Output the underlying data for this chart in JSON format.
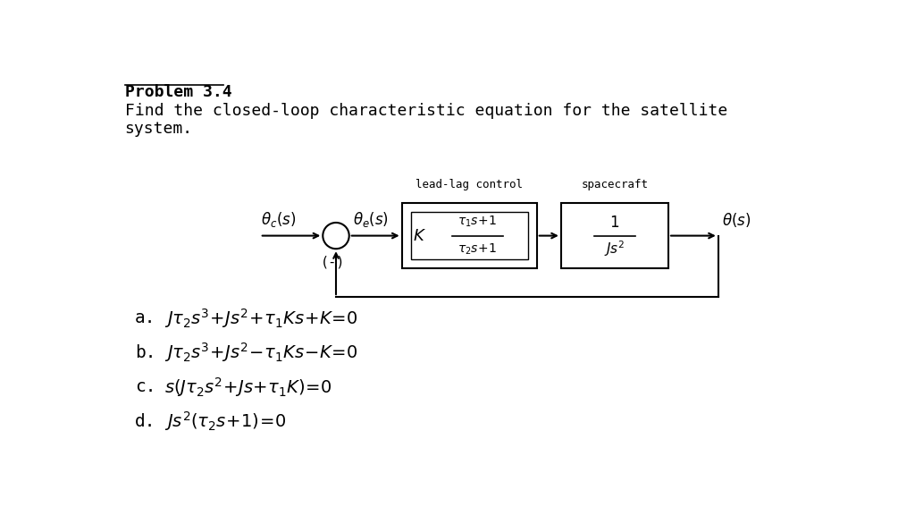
{
  "title_line1": "Problem 3.4",
  "title_line2": "Find the closed-loop characteristic equation for the satellite",
  "title_line3": "system.",
  "background_color": "#ffffff",
  "text_color": "#000000",
  "label_lead_lag": "lead-lag control",
  "label_spacecraft": "spacecraft",
  "label_minus": "(-)"
}
